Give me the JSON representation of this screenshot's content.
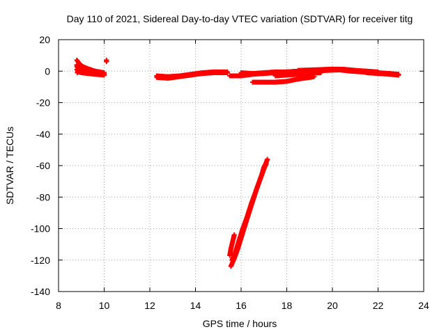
{
  "chart_data": {
    "type": "scatter",
    "title": "Day 110 of 2021, Sidereal Day-to-day VTEC variation (SDTVAR) for receiver titg",
    "xlabel": "GPS time / hours",
    "ylabel": "SDTVAR / TECUs",
    "xlim": [
      8,
      24
    ],
    "ylim": [
      -140,
      20
    ],
    "xticks": [
      8,
      10,
      12,
      14,
      16,
      18,
      20,
      22,
      24
    ],
    "yticks": [
      20,
      0,
      -20,
      -40,
      -60,
      -80,
      -100,
      -120,
      -140
    ],
    "grid": true,
    "marker": "+",
    "series": [
      {
        "name": "SDTVAR",
        "color": "#ff0000",
        "tracks": [
          [
            [
              8.8,
              7
            ],
            [
              8.9,
              5
            ],
            [
              9.0,
              3.5
            ],
            [
              9.2,
              2
            ],
            [
              9.4,
              1
            ],
            [
              9.6,
              0
            ],
            [
              9.8,
              -0.5
            ],
            [
              10.0,
              -1
            ]
          ],
          [
            [
              8.8,
              4
            ],
            [
              8.9,
              2
            ],
            [
              9.0,
              1
            ],
            [
              9.2,
              0
            ],
            [
              9.5,
              -1
            ],
            [
              9.8,
              -1.5
            ],
            [
              10.0,
              -2
            ]
          ],
          [
            [
              8.8,
              1
            ],
            [
              8.9,
              -0.5
            ],
            [
              9.0,
              -1
            ],
            [
              9.3,
              -1.5
            ],
            [
              9.6,
              -2
            ],
            [
              10.0,
              -2.5
            ]
          ],
          [
            [
              8.82,
              -1
            ],
            [
              8.85,
              0
            ],
            [
              8.85,
              2
            ],
            [
              8.8,
              3
            ]
          ],
          [
            [
              10.1,
              6
            ],
            [
              10.1,
              7
            ]
          ],
          [
            [
              12.3,
              -3
            ],
            [
              12.8,
              -3.5
            ],
            [
              13.3,
              -3
            ],
            [
              13.8,
              -2
            ],
            [
              14.3,
              -1
            ],
            [
              14.8,
              -0.5
            ],
            [
              15.4,
              -0.5
            ]
          ],
          [
            [
              12.3,
              -4
            ],
            [
              12.8,
              -4.5
            ],
            [
              13.3,
              -3.5
            ],
            [
              13.8,
              -2.5
            ],
            [
              14.3,
              -1.5
            ],
            [
              14.8,
              -1
            ],
            [
              15.4,
              -1
            ]
          ],
          [
            [
              15.5,
              -3
            ],
            [
              16.0,
              -3
            ],
            [
              16.5,
              -2
            ],
            [
              17.0,
              -1.5
            ],
            [
              17.5,
              -1
            ],
            [
              18.0,
              -0.5
            ],
            [
              18.5,
              0
            ]
          ],
          [
            [
              16.0,
              -1
            ],
            [
              16.5,
              -1.5
            ],
            [
              17.0,
              -1
            ],
            [
              17.5,
              -0.5
            ],
            [
              18.0,
              -0.5
            ],
            [
              18.5,
              0
            ],
            [
              19.0,
              0.5
            ]
          ],
          [
            [
              16.5,
              -7
            ],
            [
              17.5,
              -7
            ],
            [
              18.0,
              -6.5
            ],
            [
              18.5,
              -5
            ],
            [
              19.0,
              -4
            ],
            [
              19.2,
              -3.5
            ]
          ],
          [
            [
              17.5,
              -3
            ],
            [
              18.5,
              -2
            ],
            [
              19.0,
              -1.5
            ],
            [
              19.5,
              -1
            ]
          ],
          [
            [
              18.5,
              0.5
            ],
            [
              19.5,
              1
            ],
            [
              20.0,
              1.3
            ],
            [
              20.5,
              1.2
            ],
            [
              21.0,
              0.5
            ],
            [
              21.5,
              0
            ],
            [
              22.0,
              -0.5
            ]
          ],
          [
            [
              19.0,
              0
            ],
            [
              19.8,
              0.5
            ],
            [
              20.3,
              0.8
            ],
            [
              20.8,
              0
            ],
            [
              21.3,
              -0.5
            ],
            [
              21.8,
              -1
            ]
          ],
          [
            [
              21.0,
              0
            ],
            [
              21.5,
              -0.5
            ],
            [
              22.0,
              -1
            ],
            [
              22.5,
              -1.5
            ],
            [
              22.9,
              -2
            ]
          ],
          [
            [
              21.5,
              -1
            ],
            [
              22.0,
              -1.5
            ],
            [
              22.5,
              -2
            ],
            [
              22.9,
              -2.5
            ]
          ],
          [
            [
              15.55,
              -124
            ],
            [
              15.7,
              -119
            ],
            [
              15.85,
              -113
            ],
            [
              16.0,
              -106
            ],
            [
              16.15,
              -99
            ],
            [
              16.3,
              -92
            ],
            [
              16.5,
              -83
            ],
            [
              16.7,
              -74
            ],
            [
              16.9,
              -66
            ],
            [
              17.0,
              -61
            ],
            [
              17.1,
              -58
            ],
            [
              17.15,
              -56
            ]
          ],
          [
            [
              15.6,
              -120
            ],
            [
              15.75,
              -115
            ],
            [
              15.9,
              -108
            ],
            [
              16.05,
              -101
            ],
            [
              16.25,
              -93
            ],
            [
              16.45,
              -84
            ],
            [
              16.65,
              -76
            ],
            [
              16.85,
              -68
            ],
            [
              17.0,
              -62
            ],
            [
              17.1,
              -59
            ]
          ],
          [
            [
              15.5,
              -117
            ],
            [
              15.55,
              -113
            ],
            [
              15.6,
              -110
            ],
            [
              15.65,
              -107
            ],
            [
              15.7,
              -104
            ]
          ]
        ]
      }
    ]
  }
}
